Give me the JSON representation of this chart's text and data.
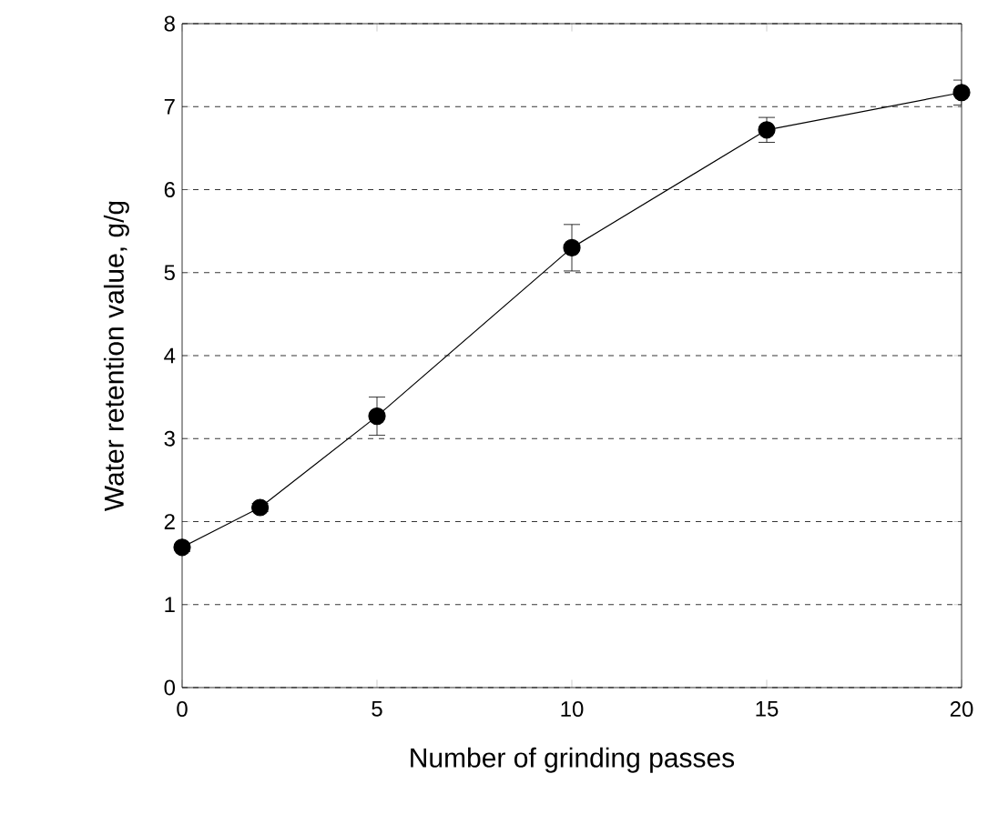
{
  "chart_data": {
    "type": "line",
    "xlabel": "Number of grinding passes",
    "ylabel": "Water retention value, g/g",
    "x": [
      0,
      2,
      5,
      10,
      15,
      20
    ],
    "series": [
      {
        "color": "#000000",
        "values": [
          1.69,
          2.17,
          3.27,
          5.3,
          6.72,
          7.17
        ],
        "errors": [
          0.05,
          0.05,
          0.23,
          0.28,
          0.15,
          0.15
        ]
      }
    ],
    "xlim": [
      0,
      20
    ],
    "xticks": [
      0,
      5,
      10,
      15,
      20
    ],
    "ylim": [
      0,
      8
    ],
    "yticks": [
      0,
      1,
      2,
      3,
      4,
      5,
      6,
      7,
      8
    ],
    "grid": "y",
    "marker": "circle",
    "line_style": "solid"
  }
}
